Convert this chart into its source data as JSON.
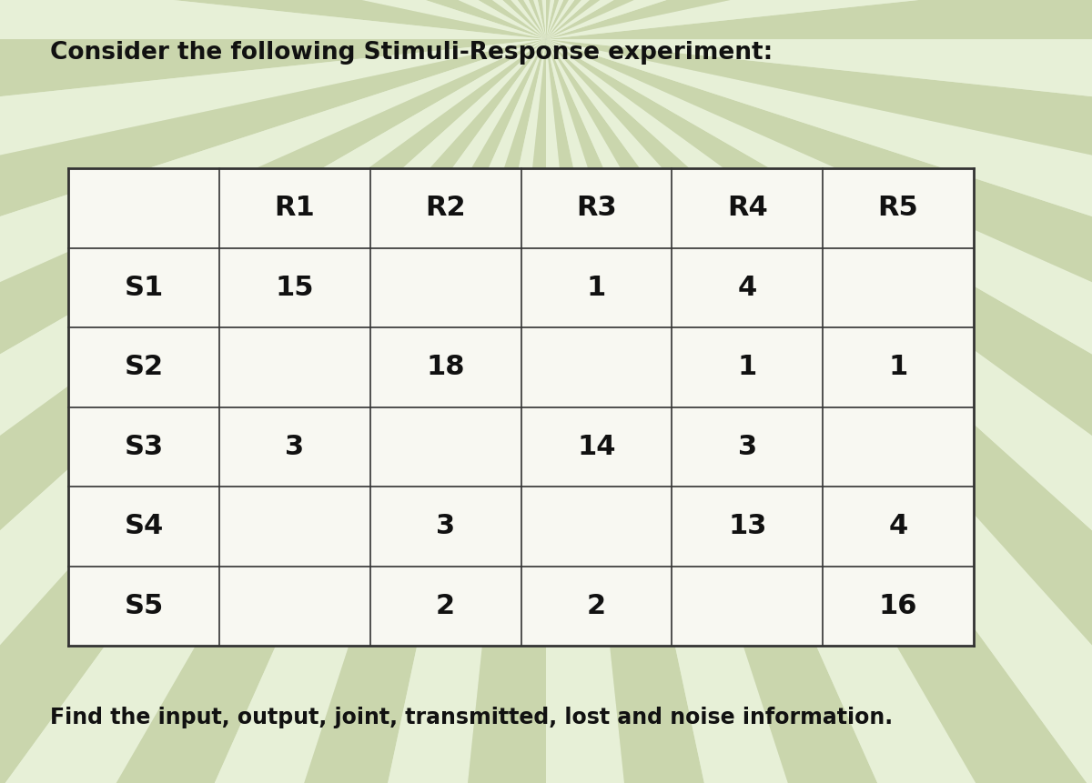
{
  "title": "Consider the following Stimuli-Response experiment:",
  "footer": "Find the input, output, joint, transmitted, lost and noise information.",
  "col_headers": [
    "",
    "R1",
    "R2",
    "R3",
    "R4",
    "R5"
  ],
  "rows": [
    [
      "S1",
      "15",
      "",
      "1",
      "4",
      ""
    ],
    [
      "S2",
      "",
      "18",
      "",
      "1",
      "1"
    ],
    [
      "S3",
      "3",
      "",
      "14",
      "3",
      ""
    ],
    [
      "S4",
      "",
      "3",
      "",
      "13",
      "4"
    ],
    [
      "S5",
      "",
      "2",
      "2",
      "",
      "16"
    ]
  ],
  "table_border_color": "#222222",
  "text_color": "#111111",
  "title_fontsize": 19,
  "footer_fontsize": 17,
  "cell_fontsize": 22,
  "header_fontsize": 22,
  "row_label_fontsize": 22,
  "cell_bg": "#f0efe8",
  "stripe_colors": [
    "#c8d4b0",
    "#e8f0d8",
    "#f5f5ee",
    "#dce8c8",
    "#eef4e0"
  ],
  "bg_base": "#e8ecdc"
}
